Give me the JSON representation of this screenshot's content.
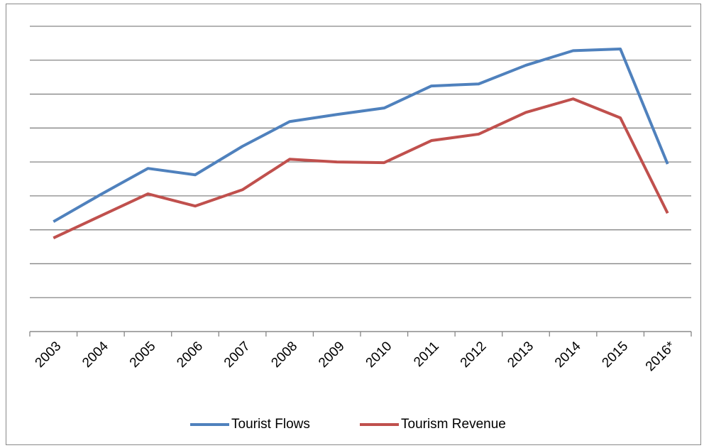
{
  "chart_data": {
    "type": "line",
    "categories": [
      "2003",
      "2004",
      "2005",
      "2006",
      "2007",
      "2008",
      "2009",
      "2010",
      "2011",
      "2012",
      "2013",
      "2014",
      "2015",
      "2016*"
    ],
    "series": [
      {
        "name": "Tourist Flows",
        "color": "#4f81bd",
        "values": [
          3.24,
          4.04,
          4.81,
          4.62,
          5.46,
          6.19,
          6.4,
          6.59,
          7.24,
          7.3,
          7.85,
          8.28,
          8.33,
          4.94
        ]
      },
      {
        "name": "Tourism Revenue",
        "color": "#c0504d",
        "values": [
          2.76,
          3.41,
          4.06,
          3.7,
          4.18,
          5.08,
          5.0,
          4.98,
          5.63,
          5.82,
          6.46,
          6.86,
          6.3,
          3.49
        ]
      }
    ],
    "ylim": [
      0,
      9
    ],
    "yticks": [
      0,
      1,
      2,
      3,
      4,
      5,
      6,
      7,
      8,
      9
    ],
    "grid": true,
    "legend": "bottom"
  }
}
